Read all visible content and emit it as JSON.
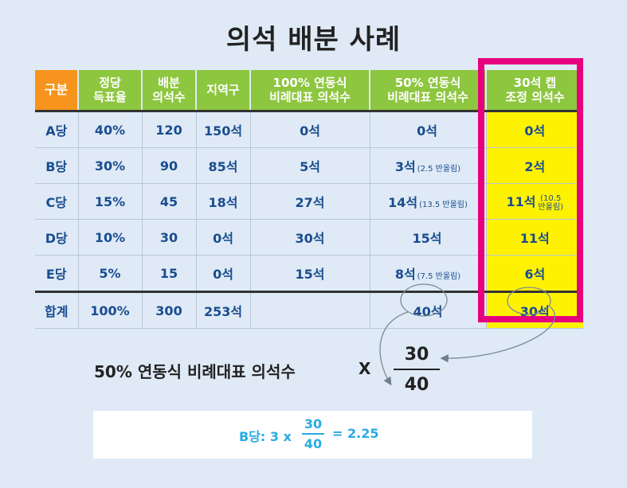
{
  "title": "의석 배분 사례",
  "headers": {
    "party": "구분",
    "vote_share": [
      "정당",
      "득표율"
    ],
    "seats_alloc": [
      "배분",
      "의석수"
    ],
    "district": "지역구",
    "full_pr": [
      "100% 연동식",
      "비례대표 의석수"
    ],
    "half_pr": [
      "50% 연동식",
      "비례대표 의석수"
    ],
    "cap_adj": [
      "30석 캡",
      "조정 의석수"
    ]
  },
  "rows": [
    {
      "party": "A당",
      "share": "40%",
      "alloc": "120",
      "district": "150석",
      "full": "0석",
      "half": "0석",
      "half_note": "",
      "cap": "0석",
      "cap_note": [
        "",
        ""
      ]
    },
    {
      "party": "B당",
      "share": "30%",
      "alloc": "90",
      "district": "85석",
      "full": "5석",
      "half": "3석",
      "half_note": "(2.5 반올림)",
      "cap": "2석",
      "cap_note": [
        "",
        ""
      ]
    },
    {
      "party": "C당",
      "share": "15%",
      "alloc": "45",
      "district": "18석",
      "full": "27석",
      "half": "14석",
      "half_note": "(13.5 반올림)",
      "cap": "11석",
      "cap_note": [
        "(10.5",
        "반올림)"
      ]
    },
    {
      "party": "D당",
      "share": "10%",
      "alloc": "30",
      "district": "0석",
      "full": "30석",
      "half": "15석",
      "half_note": "",
      "cap": "11석",
      "cap_note": [
        "",
        ""
      ]
    },
    {
      "party": "E당",
      "share": "5%",
      "alloc": "15",
      "district": "0석",
      "full": "15석",
      "half": "8석",
      "half_note": "(7.5 반올림)",
      "cap": "6석",
      "cap_note": [
        "",
        ""
      ]
    }
  ],
  "total": {
    "party": "합계",
    "share": "100%",
    "alloc": "300",
    "district": "253석",
    "full": "",
    "half": "40석",
    "cap": "30석"
  },
  "formula": {
    "text": "50% 연동식 비례대표 의석수",
    "times": "X",
    "numerator": "30",
    "denominator": "40"
  },
  "example": {
    "label": "B당: 3 x",
    "numerator": "30",
    "denominator": "40",
    "result": "= 2.25"
  },
  "colors": {
    "header_green": "#8dc63f",
    "header_orange": "#f7941d",
    "highlight_yellow": "#fff200",
    "frame_pink": "#e6007e",
    "text_blue": "#1a4d8f",
    "example_blue": "#29abe2"
  }
}
